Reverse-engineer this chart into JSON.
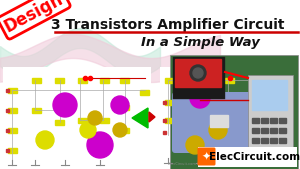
{
  "bg_color": "#ffffff",
  "title_line1": "3 Transistors Amplifier Circuit",
  "title_line2": "In a Simple Way",
  "design_text": "Design",
  "design_color": "#ff0000",
  "title_color": "#111111",
  "underline_color": "#cc0000",
  "wave_pink": "#f0c8d8",
  "wave_mint": "#c0e8d8",
  "logo_bg": "#ff6600",
  "logo_text": "ElecCircuit.com",
  "logo_text_color": "#000000",
  "photo_bg": "#3a6e3a",
  "figsize": [
    3.0,
    1.69
  ],
  "dpi": 100
}
